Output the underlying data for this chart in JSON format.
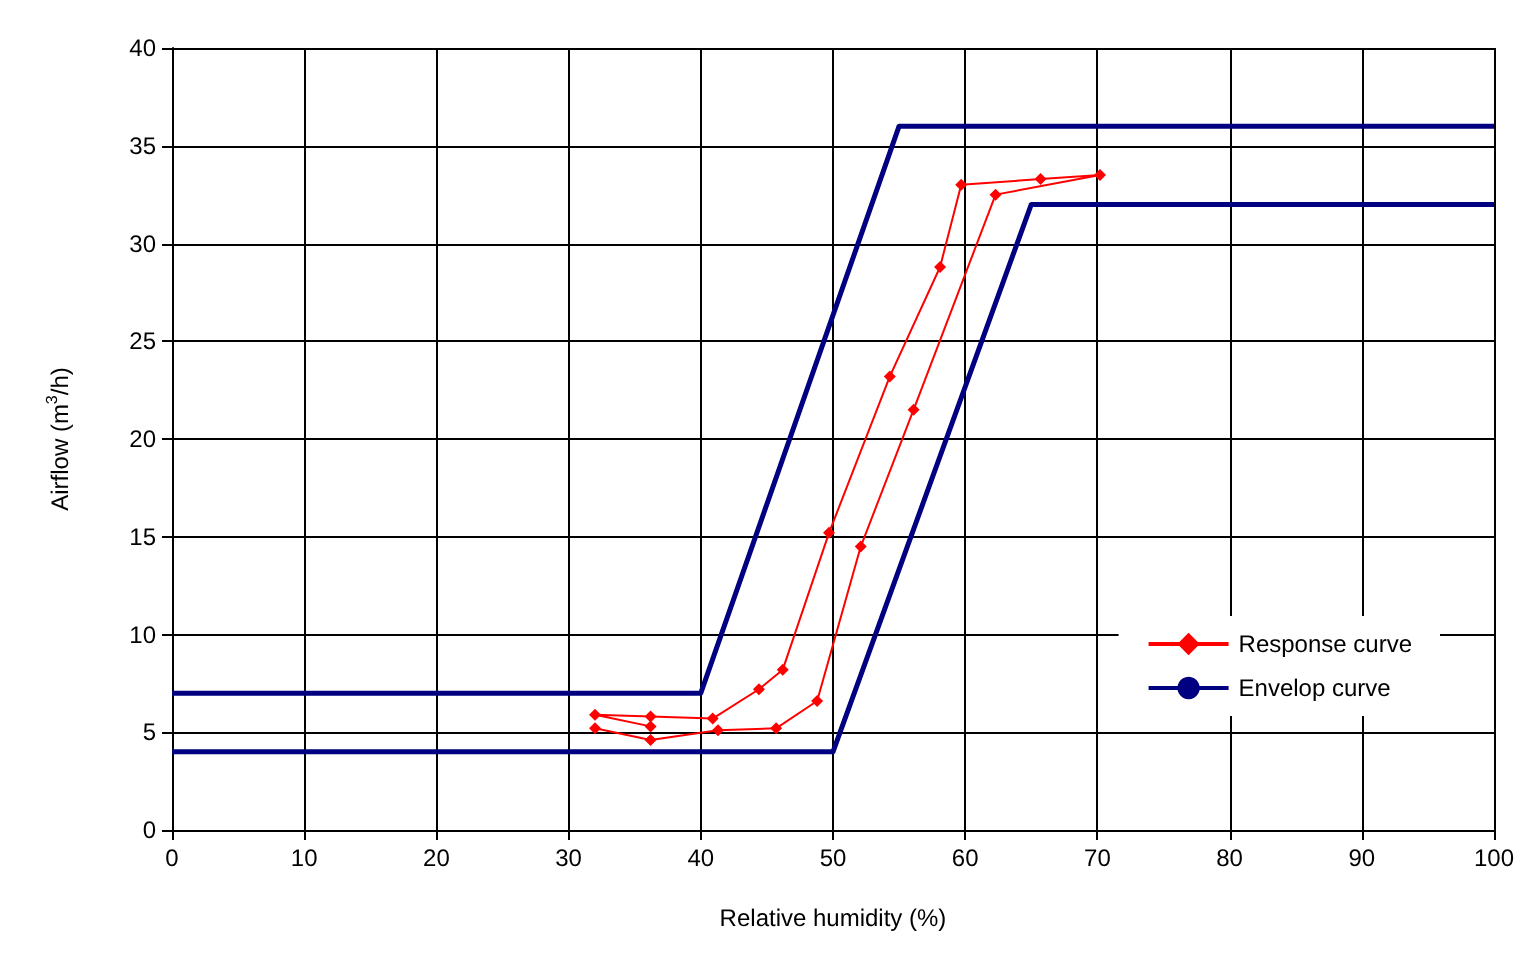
{
  "chart_data": {
    "type": "line",
    "xlabel": "Relative humidity (%)",
    "ylabel": "Airflow (m$^{3}$/h)",
    "xlim": [
      0,
      100
    ],
    "xticks": [
      0,
      10,
      20,
      30,
      40,
      50,
      60,
      70,
      80,
      90,
      100
    ],
    "ylim": [
      0,
      40
    ],
    "yticks": [
      0,
      5,
      10,
      15,
      20,
      25,
      30,
      35,
      40
    ],
    "grid": true,
    "legend": "right",
    "series": [
      {
        "name": "Response curve",
        "color": "#ff0000",
        "marker": "diamond",
        "x": [
          32,
          36.2,
          41.3,
          45.7,
          48.8,
          52.1,
          56.1,
          62.3,
          70.2,
          65.7,
          59.7,
          58.1,
          54.3,
          49.7,
          46.2,
          44.4,
          40.9,
          36.2,
          32,
          36.2
        ],
        "values": [
          5.2,
          4.6,
          5.1,
          5.2,
          6.6,
          14.5,
          21.5,
          32.5,
          33.5,
          33.3,
          33,
          28.8,
          23.2,
          15.2,
          8.2,
          7.2,
          5.7,
          5.8,
          5.9,
          5.3
        ]
      },
      {
        "name": "Envelop curve",
        "color": "#000080",
        "marker": "none",
        "x": [
          0,
          40,
          55,
          100
        ],
        "values": [
          7,
          7,
          36,
          36
        ]
      },
      {
        "color": "#000080",
        "marker": "none",
        "x": [
          0,
          50,
          65,
          100
        ],
        "values": [
          4,
          4,
          32,
          32
        ]
      }
    ]
  }
}
